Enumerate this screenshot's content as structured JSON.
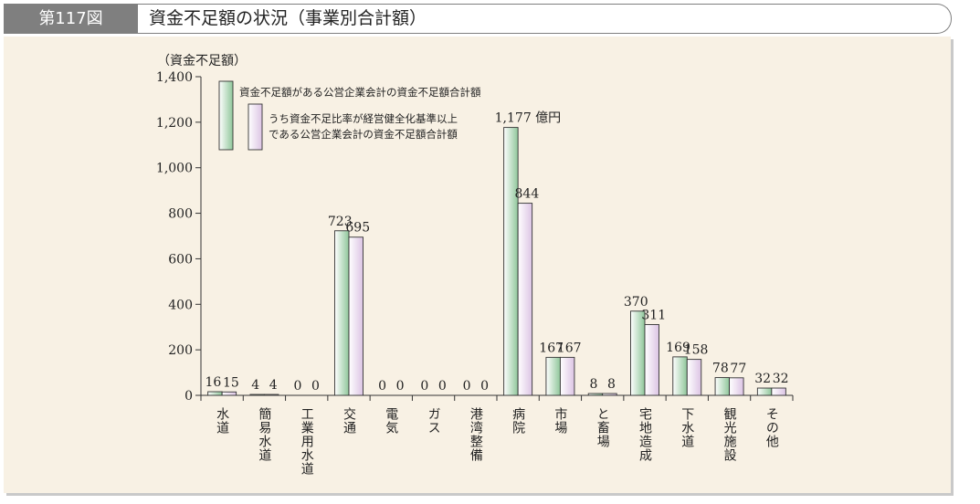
{
  "figure": {
    "label": "第117図",
    "title": "資金不足額の状況（事業別合計額）"
  },
  "colors": {
    "series1_light": "#ffffff",
    "series1_dark": "#8fc69a",
    "series2_light": "#ffffff",
    "series2_dark": "#dcc4e4",
    "outline": "#333333",
    "panel": "#f8f1e4"
  },
  "chart_data": {
    "type": "bar",
    "ylabel": "（資金不足額）",
    "ylim": [
      0,
      1400
    ],
    "yticks": [
      0,
      200,
      400,
      600,
      800,
      1000,
      1200,
      1400
    ],
    "ytick_labels": [
      "0",
      "200",
      "400",
      "600",
      "800",
      "1,000",
      "1,200",
      "1,400"
    ],
    "categories": [
      "水道",
      "簡易水道",
      "工業用水道",
      "交通",
      "電気",
      "ガス",
      "港湾整備",
      "病院",
      "市場",
      "と畜場",
      "宅地造成",
      "下水道",
      "観光施設",
      "その他"
    ],
    "series": [
      {
        "name": "資金不足額がある公営企業会計の資金不足額合計額",
        "values": [
          16,
          4,
          0,
          723,
          0,
          0,
          0,
          1177,
          167,
          8,
          370,
          169,
          78,
          32
        ],
        "value_labels": [
          "16",
          "4",
          "0",
          "723",
          "0",
          "0",
          "0",
          "1,177 億円",
          "167",
          "8",
          "370",
          "169",
          "78",
          "32"
        ]
      },
      {
        "name": "うち資金不足比率が経営健全化基準以上である公営企業会計の資金不足額合計額",
        "values": [
          15,
          4,
          0,
          695,
          0,
          0,
          0,
          844,
          167,
          8,
          311,
          158,
          77,
          32
        ],
        "value_labels": [
          "15",
          "4",
          "0",
          "695",
          "0",
          "0",
          "0",
          "844",
          "167",
          "8",
          "311",
          "158",
          "77",
          "32"
        ]
      }
    ],
    "legend": {
      "position": "top-left",
      "entries": [
        [
          "資金不足額がある公営企業会計の資金不足額合計額"
        ],
        [
          "うち資金不足比率が経営健全化基準以上",
          "である公営企業会計の資金不足額合計額"
        ]
      ]
    },
    "grid": false
  }
}
